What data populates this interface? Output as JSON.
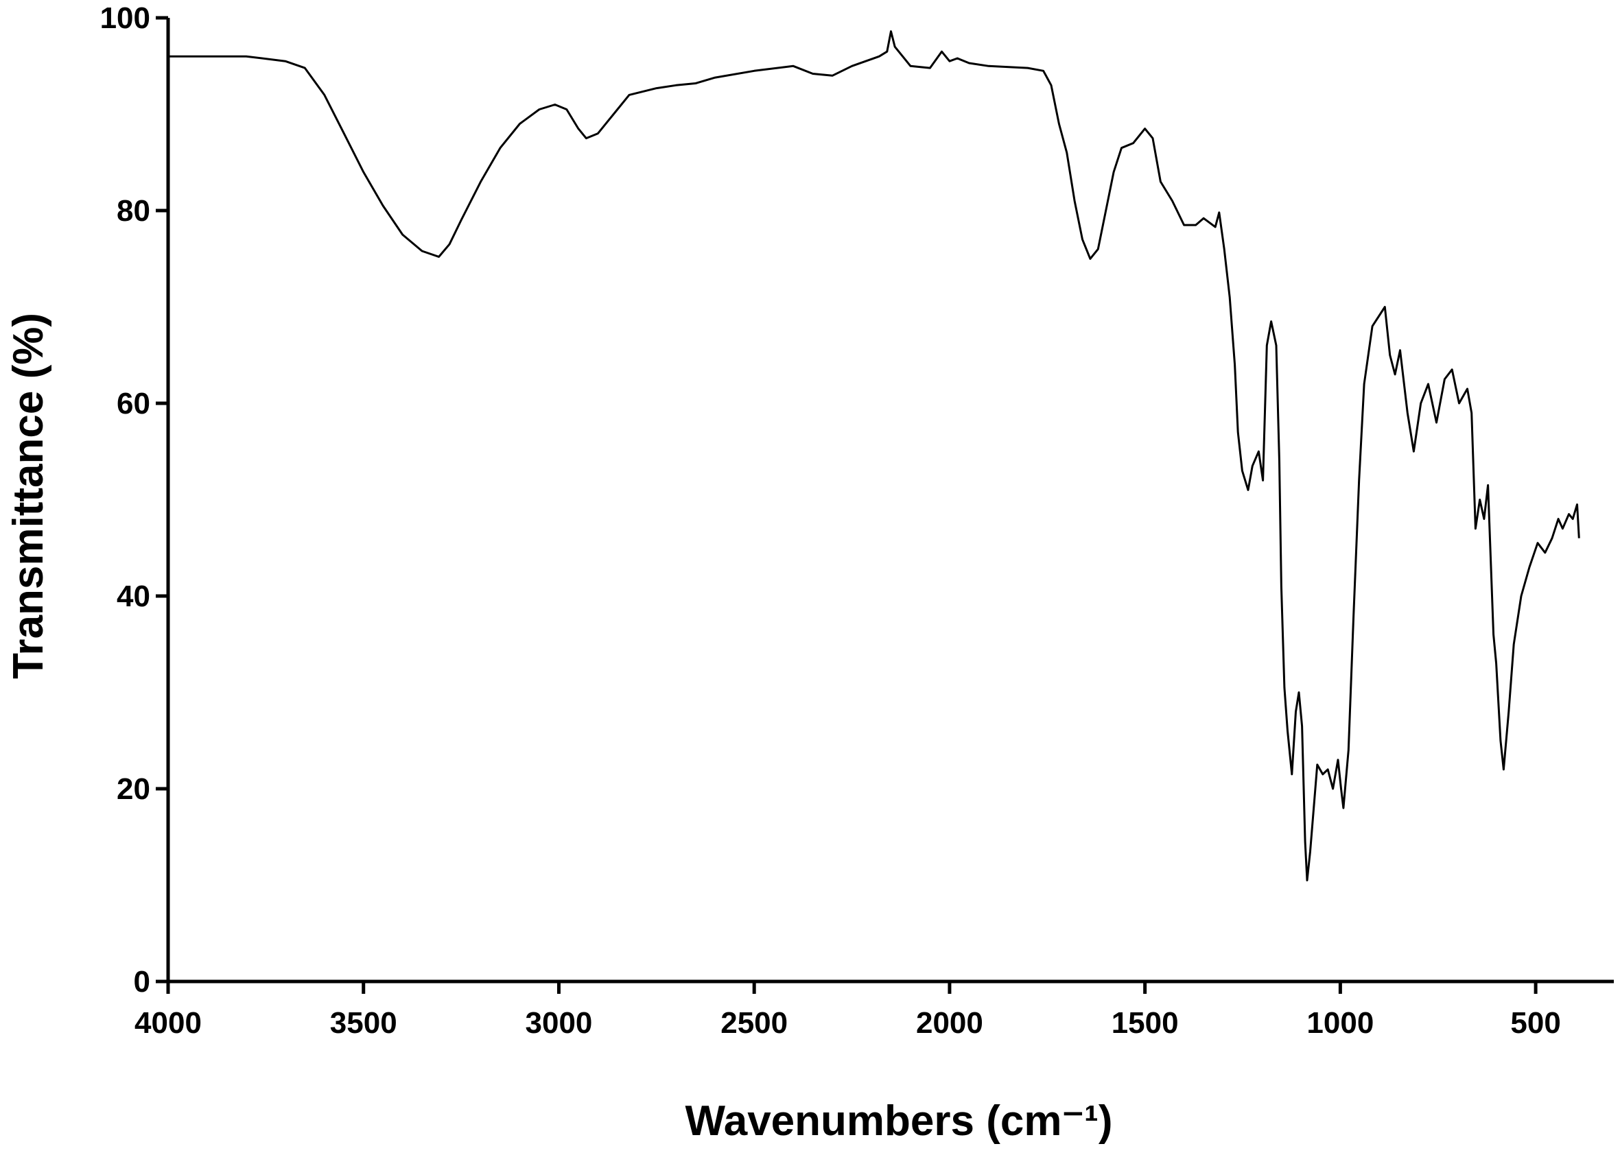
{
  "chart_data": {
    "type": "line",
    "x_label": "Wavenumbers (cm⁻¹)",
    "y_label": "Transmittance (%)",
    "color": "#000000",
    "x": [
      4000,
      3800,
      3700,
      3650,
      3600,
      3550,
      3500,
      3450,
      3400,
      3350,
      3307,
      3280,
      3250,
      3200,
      3150,
      3100,
      3050,
      3010,
      2980,
      2950,
      2930,
      2900,
      2860,
      2820,
      2750,
      2700,
      2650,
      2600,
      2500,
      2400,
      2350,
      2300,
      2250,
      2180,
      2160,
      2150,
      2140,
      2100,
      2050,
      2020,
      2000,
      1980,
      1950,
      1900,
      1800,
      1760,
      1740,
      1720,
      1700,
      1680,
      1660,
      1640,
      1620,
      1600,
      1580,
      1560,
      1530,
      1500,
      1480,
      1460,
      1430,
      1400,
      1370,
      1350,
      1320,
      1310,
      1297,
      1283,
      1270,
      1262,
      1251,
      1236,
      1225,
      1209,
      1198,
      1188,
      1177,
      1164,
      1156,
      1151,
      1143,
      1135,
      1124,
      1114,
      1106,
      1098,
      1090,
      1085,
      1077,
      1066,
      1059,
      1045,
      1032,
      1019,
      1006,
      998,
      992,
      979,
      966,
      952,
      939,
      918,
      886,
      873,
      860,
      847,
      828,
      812,
      794,
      775,
      754,
      733,
      714,
      696,
      675,
      664,
      654,
      643,
      632,
      622,
      608,
      601,
      590,
      582,
      569,
      556,
      537,
      516,
      495,
      476,
      458,
      442,
      431,
      415,
      405,
      394,
      389
    ],
    "values": [
      96,
      96,
      95.5,
      94.8,
      92,
      88,
      84,
      80.5,
      77.5,
      75.8,
      75.2,
      76.5,
      79,
      83,
      86.5,
      89,
      90.5,
      91,
      90.5,
      88.5,
      87.5,
      88,
      90,
      92,
      92.7,
      93,
      93.2,
      93.8,
      94.5,
      95,
      94.2,
      94,
      95,
      96,
      96.5,
      98.6,
      97,
      95,
      94.8,
      96.5,
      95.5,
      95.8,
      95.3,
      95,
      94.8,
      94.5,
      93,
      89,
      86,
      81,
      77,
      75,
      76,
      80,
      84,
      86.5,
      87,
      88.5,
      87.5,
      83,
      81,
      78.5,
      78.5,
      79.2,
      78.3,
      79.8,
      76,
      71,
      64,
      57,
      53,
      51,
      53.5,
      55,
      52,
      66,
      68.5,
      66,
      54,
      41,
      30.5,
      26,
      21.5,
      28,
      30,
      26.5,
      14.5,
      10.5,
      13.5,
      19,
      22.5,
      21.5,
      22,
      20,
      23,
      20,
      18,
      24,
      38,
      52,
      62,
      68,
      70,
      65,
      63,
      65.5,
      59,
      55,
      60,
      62,
      58,
      62.5,
      63.5,
      60,
      61.5,
      59,
      47,
      50,
      48,
      51.5,
      36,
      33,
      25,
      22,
      28,
      35,
      40,
      43,
      45.5,
      44.5,
      46,
      48,
      47,
      48.5,
      48,
      49.5,
      46
    ],
    "xlim": [
      4000,
      300
    ],
    "xticks": [
      4000,
      3500,
      3000,
      2500,
      2000,
      1500,
      1000,
      500
    ],
    "ylim": [
      0,
      100
    ],
    "yticks": [
      0,
      20,
      40,
      60,
      80,
      100
    ]
  }
}
